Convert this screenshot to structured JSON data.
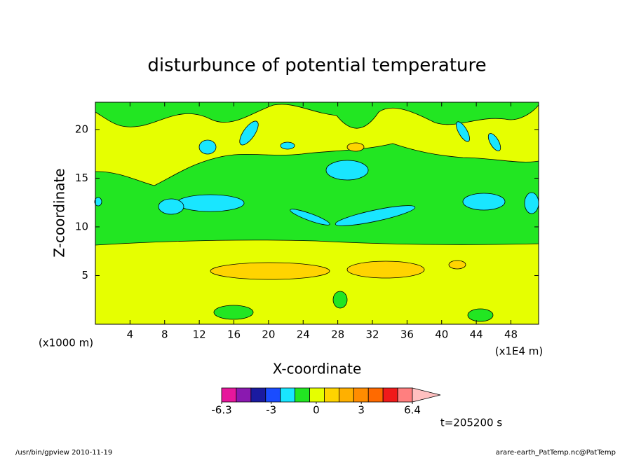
{
  "chart_data": {
    "type": "contour",
    "title": "disturbunce of potential temperature",
    "xlabel": "X-coordinate",
    "ylabel": "Z-coordinate",
    "x_unit_left": "(x1000 m)",
    "x_unit_right": "(x1E4 m)",
    "xlim": [
      0,
      51.2
    ],
    "ylim": [
      0,
      22.8
    ],
    "xticks": [
      4,
      8,
      12,
      16,
      20,
      24,
      28,
      32,
      36,
      40,
      44,
      48
    ],
    "yticks": [
      5,
      10,
      15,
      20
    ],
    "colorbar": {
      "range": [
        -6.3,
        6.4
      ],
      "ticks": [
        -6.3,
        -3,
        0,
        3,
        6.4
      ],
      "colors": [
        "#e6179c",
        "#8a19b0",
        "#1a1aa0",
        "#1a4cff",
        "#19e6ff",
        "#22e622",
        "#e6ff00",
        "#ffd400",
        "#ffb000",
        "#ff8c00",
        "#ff6a00",
        "#f01a1a",
        "#ff7f7f"
      ],
      "extend_color": "#ffc0c0"
    },
    "time_label": "t=205200 s",
    "footer_left": "/usr/bin/gpview   2010-11-19",
    "footer_right": "arare-earth_PatTemp.nc@PatTemp"
  }
}
